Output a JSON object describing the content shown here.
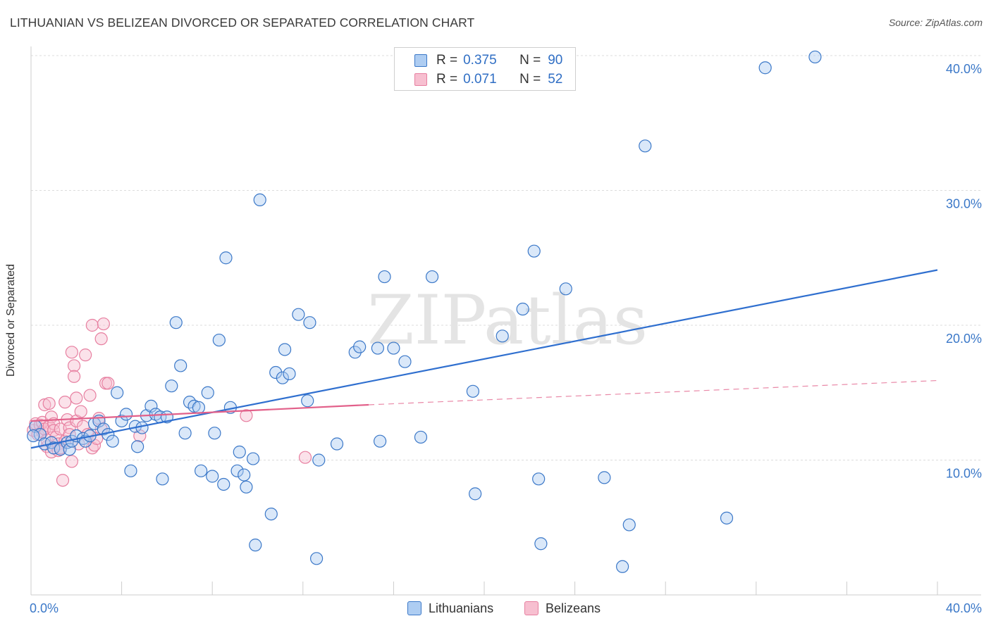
{
  "title": "LITHUANIAN VS BELIZEAN DIVORCED OR SEPARATED CORRELATION CHART",
  "source": "Source: ZipAtlas.com",
  "colors": {
    "blue": "#3b78c8",
    "blue_fill": "#aecdf2",
    "blue_line": "#2f6fcf",
    "pink": "#e77fa0",
    "pink_fill": "#f7bfd0",
    "pink_line": "#e2608a",
    "grid": "#dcdcdc"
  },
  "legend": {
    "lithuanians": {
      "r_label": "R =",
      "r_value": "0.375",
      "n_label": "N =",
      "n_value": "90"
    },
    "belizeans": {
      "r_label": "R =",
      "r_value": "0.071",
      "n_label": "N =",
      "n_value": "52"
    }
  },
  "bottom_legend": {
    "lithuanians": "Lithuanians",
    "belizeans": "Belizeans"
  },
  "watermark": "ZIPatlas",
  "chart_data": {
    "type": "scatter",
    "title": "LITHUANIAN VS BELIZEAN DIVORCED OR SEPARATED CORRELATION CHART",
    "xlabel": "",
    "ylabel": "Divorced or Separated",
    "xlim": [
      0,
      40
    ],
    "ylim": [
      0,
      40
    ],
    "x_tick_labels": [
      "0.0%",
      "40.0%"
    ],
    "y_ticks": [
      10,
      20,
      30,
      40
    ],
    "y_tick_labels": [
      "10.0%",
      "20.0%",
      "30.0%",
      "40.0%"
    ],
    "grid": true,
    "series": [
      {
        "name": "Lithuanians",
        "r": 0.375,
        "n": 90,
        "trend": {
          "x": [
            0,
            40
          ],
          "y": [
            10.9,
            24.1
          ],
          "style": "solid"
        },
        "points": [
          [
            0.2,
            12.5
          ],
          [
            0.4,
            11.9
          ],
          [
            0.6,
            11.2
          ],
          [
            0.9,
            11.3
          ],
          [
            1.0,
            10.9
          ],
          [
            1.3,
            10.8
          ],
          [
            1.6,
            11.3
          ],
          [
            1.7,
            10.8
          ],
          [
            1.8,
            11.4
          ],
          [
            2.0,
            11.8
          ],
          [
            2.3,
            11.6
          ],
          [
            2.4,
            11.4
          ],
          [
            2.6,
            11.8
          ],
          [
            2.8,
            12.7
          ],
          [
            3.0,
            12.9
          ],
          [
            3.2,
            12.3
          ],
          [
            3.4,
            11.9
          ],
          [
            3.6,
            11.4
          ],
          [
            3.8,
            15.0
          ],
          [
            4.0,
            12.9
          ],
          [
            4.2,
            13.4
          ],
          [
            4.4,
            9.2
          ],
          [
            4.6,
            12.5
          ],
          [
            4.7,
            11.0
          ],
          [
            4.9,
            12.4
          ],
          [
            5.1,
            13.3
          ],
          [
            5.3,
            14.0
          ],
          [
            5.5,
            13.4
          ],
          [
            5.7,
            13.2
          ],
          [
            5.8,
            8.6
          ],
          [
            6.0,
            13.2
          ],
          [
            6.2,
            15.5
          ],
          [
            6.4,
            20.2
          ],
          [
            6.6,
            17.0
          ],
          [
            6.8,
            12.0
          ],
          [
            7.0,
            14.3
          ],
          [
            7.2,
            14.0
          ],
          [
            7.4,
            13.9
          ],
          [
            7.5,
            9.2
          ],
          [
            7.8,
            15.0
          ],
          [
            8.0,
            8.8
          ],
          [
            8.1,
            12.0
          ],
          [
            8.3,
            18.9
          ],
          [
            8.5,
            8.2
          ],
          [
            8.6,
            25.0
          ],
          [
            8.8,
            13.9
          ],
          [
            9.1,
            9.2
          ],
          [
            9.2,
            10.6
          ],
          [
            9.4,
            8.9
          ],
          [
            9.5,
            8.0
          ],
          [
            9.8,
            10.1
          ],
          [
            9.9,
            3.7
          ],
          [
            10.1,
            29.3
          ],
          [
            10.6,
            6.0
          ],
          [
            10.8,
            16.5
          ],
          [
            11.1,
            16.1
          ],
          [
            11.2,
            18.2
          ],
          [
            11.4,
            16.4
          ],
          [
            11.8,
            20.8
          ],
          [
            12.2,
            14.4
          ],
          [
            12.3,
            20.2
          ],
          [
            12.6,
            2.7
          ],
          [
            12.7,
            10.0
          ],
          [
            13.5,
            11.2
          ],
          [
            14.3,
            18.0
          ],
          [
            14.5,
            18.4
          ],
          [
            15.3,
            18.3
          ],
          [
            15.4,
            11.4
          ],
          [
            15.6,
            23.6
          ],
          [
            16.0,
            18.3
          ],
          [
            16.5,
            17.3
          ],
          [
            17.2,
            11.7
          ],
          [
            17.7,
            23.6
          ],
          [
            18.1,
            38.9
          ],
          [
            19.5,
            15.1
          ],
          [
            19.6,
            7.5
          ],
          [
            20.8,
            19.2
          ],
          [
            21.7,
            21.2
          ],
          [
            22.2,
            25.5
          ],
          [
            22.4,
            8.6
          ],
          [
            22.5,
            3.8
          ],
          [
            23.6,
            22.7
          ],
          [
            25.3,
            8.7
          ],
          [
            26.1,
            2.1
          ],
          [
            26.4,
            5.2
          ],
          [
            27.1,
            33.3
          ],
          [
            30.7,
            5.7
          ],
          [
            32.4,
            39.1
          ],
          [
            34.6,
            39.9
          ],
          [
            0.1,
            11.8
          ]
        ]
      },
      {
        "name": "Belizeans",
        "r": 0.071,
        "n": 52,
        "trend": {
          "x": [
            0,
            14.9
          ],
          "y": [
            12.9,
            14.1
          ],
          "style": "solid",
          "extension": {
            "x": [
              14.9,
              40
            ],
            "y": [
              14.1,
              15.9
            ],
            "style": "dashed"
          }
        },
        "points": [
          [
            0.1,
            12.2
          ],
          [
            0.2,
            12.7
          ],
          [
            0.3,
            11.9
          ],
          [
            0.4,
            12.6
          ],
          [
            0.5,
            12.1
          ],
          [
            0.5,
            12.8
          ],
          [
            0.6,
            14.1
          ],
          [
            0.6,
            12.3
          ],
          [
            0.7,
            11.0
          ],
          [
            0.7,
            11.5
          ],
          [
            0.8,
            12.5
          ],
          [
            0.8,
            14.2
          ],
          [
            0.9,
            13.2
          ],
          [
            0.9,
            10.6
          ],
          [
            1.0,
            12.7
          ],
          [
            1.0,
            12.2
          ],
          [
            1.1,
            11.7
          ],
          [
            1.2,
            11.2
          ],
          [
            1.2,
            10.7
          ],
          [
            1.3,
            12.3
          ],
          [
            1.3,
            10.9
          ],
          [
            1.4,
            8.5
          ],
          [
            1.5,
            14.3
          ],
          [
            1.5,
            11.4
          ],
          [
            1.6,
            13.0
          ],
          [
            1.7,
            12.4
          ],
          [
            1.7,
            11.9
          ],
          [
            1.8,
            9.9
          ],
          [
            1.8,
            18.0
          ],
          [
            1.9,
            17.0
          ],
          [
            1.9,
            16.2
          ],
          [
            2.0,
            14.6
          ],
          [
            2.0,
            12.9
          ],
          [
            2.1,
            11.2
          ],
          [
            2.2,
            13.6
          ],
          [
            2.3,
            12.5
          ],
          [
            2.4,
            17.8
          ],
          [
            2.5,
            11.9
          ],
          [
            2.6,
            14.8
          ],
          [
            2.7,
            10.9
          ],
          [
            2.7,
            20.0
          ],
          [
            2.8,
            11.1
          ],
          [
            2.9,
            11.6
          ],
          [
            3.0,
            13.1
          ],
          [
            3.1,
            19.0
          ],
          [
            3.1,
            12.3
          ],
          [
            3.2,
            20.1
          ],
          [
            3.3,
            15.7
          ],
          [
            3.4,
            15.7
          ],
          [
            4.8,
            11.8
          ],
          [
            9.5,
            13.3
          ],
          [
            12.1,
            10.2
          ]
        ]
      }
    ]
  }
}
